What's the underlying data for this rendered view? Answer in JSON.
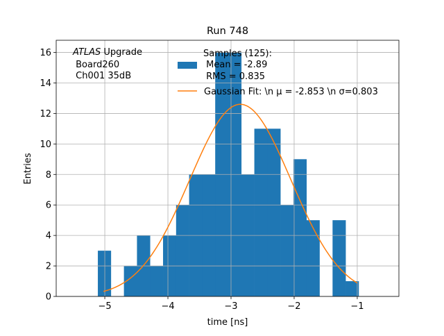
{
  "chart_data": {
    "type": "bar",
    "title": "Run 748",
    "xlabel": "time [ns]",
    "ylabel": "Entries",
    "xlim": [
      -5.77,
      -0.34
    ],
    "ylim": [
      0,
      16.8
    ],
    "xticks": [
      -5,
      -4,
      -3,
      -2,
      -1
    ],
    "xtick_labels": [
      "−5",
      "−4",
      "−3",
      "−2",
      "−1"
    ],
    "yticks": [
      0,
      2,
      4,
      6,
      8,
      10,
      12,
      14,
      16
    ],
    "grid": true,
    "legend_placement": "top-center",
    "bin_start": -5.11,
    "bin_width": 0.2066,
    "values": [
      3,
      0,
      2,
      4,
      2,
      4,
      6,
      8,
      8,
      16,
      16,
      8,
      11,
      11,
      6,
      9,
      5,
      0,
      5,
      1
    ],
    "fit": {
      "type": "gaussian",
      "mu": -2.853,
      "sigma": 0.803,
      "x_range": [
        -5.02,
        -1.0
      ]
    },
    "colors": {
      "hist": "#1f77b4",
      "fit": "#ff7f0e",
      "grid": "#b0b0b0"
    },
    "legend": [
      {
        "lines": [
          "Samples (125):",
          " Mean = -2.89",
          " RMS = 0.835"
        ]
      },
      {
        "lines": [
          "Gaussian Fit: \\n μ = -2.853 \\n σ=0.803"
        ]
      }
    ],
    "annotation": {
      "atlas": "ATLAS",
      "upgrade": " Upgrade",
      "lines": [
        " Board260",
        " Ch001 35dB"
      ]
    }
  }
}
